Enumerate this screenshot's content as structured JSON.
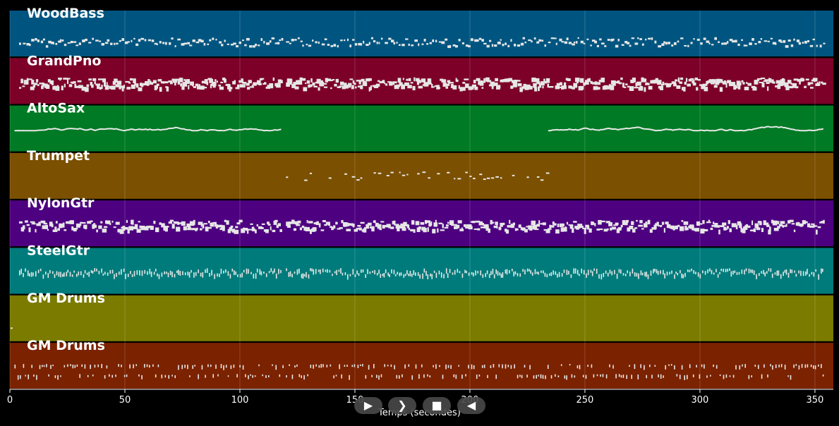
{
  "chart_data": {
    "type": "piano-roll",
    "xlabel": "Temps (secondes)",
    "xlim": [
      0,
      358
    ],
    "x_ticks": [
      0,
      50,
      100,
      150,
      200,
      250,
      300,
      350
    ],
    "grid": true,
    "tracks": [
      {
        "name": "WoodBass",
        "color": "#005580",
        "active": [
          [
            4,
            118
          ],
          [
            120,
            354
          ]
        ],
        "density": 1.2,
        "style": "dense"
      },
      {
        "name": "GrandPno",
        "color": "#7c0028",
        "active": [
          [
            4,
            118
          ],
          [
            120,
            235
          ],
          [
            237,
            354
          ]
        ],
        "density": 2.2,
        "style": "thick"
      },
      {
        "name": "AltoSax",
        "color": "#007a24",
        "active": [
          [
            2,
            118
          ],
          [
            234,
            354
          ]
        ],
        "density": 1.0,
        "style": "melody"
      },
      {
        "name": "Trumpet",
        "color": "#7b5000",
        "active": [
          [
            120,
            235
          ]
        ],
        "density": 0.8,
        "style": "sparse"
      },
      {
        "name": "NylonGtr",
        "color": "#4d0080",
        "active": [
          [
            4,
            118
          ],
          [
            120,
            354
          ]
        ],
        "density": 2.0,
        "style": "thick"
      },
      {
        "name": "SteelGtr",
        "color": "#007b7b",
        "active": [
          [
            4,
            118
          ],
          [
            120,
            354
          ]
        ],
        "density": 1.6,
        "style": "ticks"
      },
      {
        "name": "GM Drums",
        "color": "#7b7b00",
        "active": [
          [
            0,
            1
          ]
        ],
        "density": 0.5,
        "style": "dot"
      },
      {
        "name": "GM Drums",
        "color": "#7b2200",
        "active": [
          [
            2,
            354
          ]
        ],
        "density": 1.2,
        "style": "drums"
      }
    ]
  },
  "transport": {
    "play_fast_label": "▶",
    "play_label": "❯",
    "stop_label": "■",
    "rewind_label": "◀"
  },
  "icons": {
    "play_fast": "play-icon",
    "play": "chevron-right-icon",
    "stop": "stop-icon",
    "rewind": "rewind-icon"
  }
}
